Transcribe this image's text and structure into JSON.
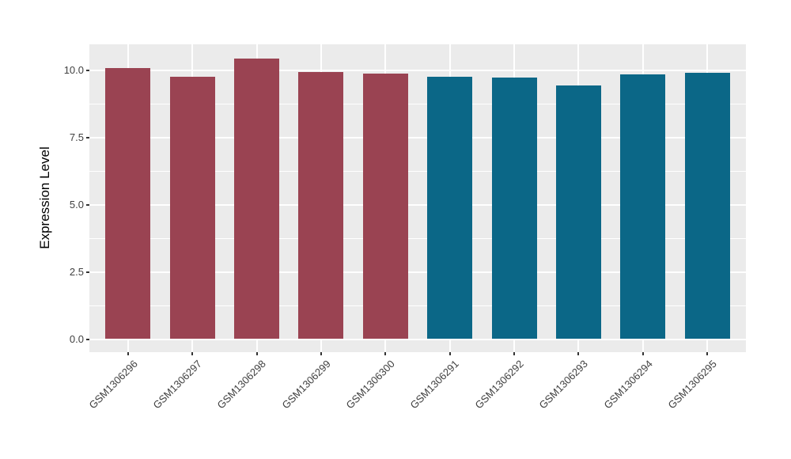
{
  "chart_data": {
    "type": "bar",
    "title": "",
    "ylabel": "Expression Level",
    "xlabel": "",
    "categories": [
      "GSM1306296",
      "GSM1306297",
      "GSM1306298",
      "GSM1306299",
      "GSM1306300",
      "GSM1306291",
      "GSM1306292",
      "GSM1306293",
      "GSM1306294",
      "GSM1306295"
    ],
    "values": [
      10.1,
      9.75,
      10.45,
      9.93,
      9.88,
      9.76,
      9.74,
      9.43,
      9.84,
      9.92
    ],
    "bar_colors": [
      "#9A4352",
      "#9A4352",
      "#9A4352",
      "#9A4352",
      "#9A4352",
      "#0B6787",
      "#0B6787",
      "#0B6787",
      "#0B6787",
      "#0B6787"
    ],
    "yticks": [
      0,
      2.5,
      5,
      7.5,
      10
    ],
    "ytick_labels": [
      "0.0",
      "2.5",
      "5.0",
      "7.5",
      "10.0"
    ],
    "yminor": [
      1.25,
      3.75,
      6.25,
      8.75
    ],
    "ylim": [
      -0.52,
      10.97
    ],
    "bar_width_fraction": 0.7,
    "panel_bg": "#EBEBEB",
    "grid_color": "#FFFFFF",
    "tick_color": "#333333",
    "legend": "none",
    "grid": "on"
  }
}
